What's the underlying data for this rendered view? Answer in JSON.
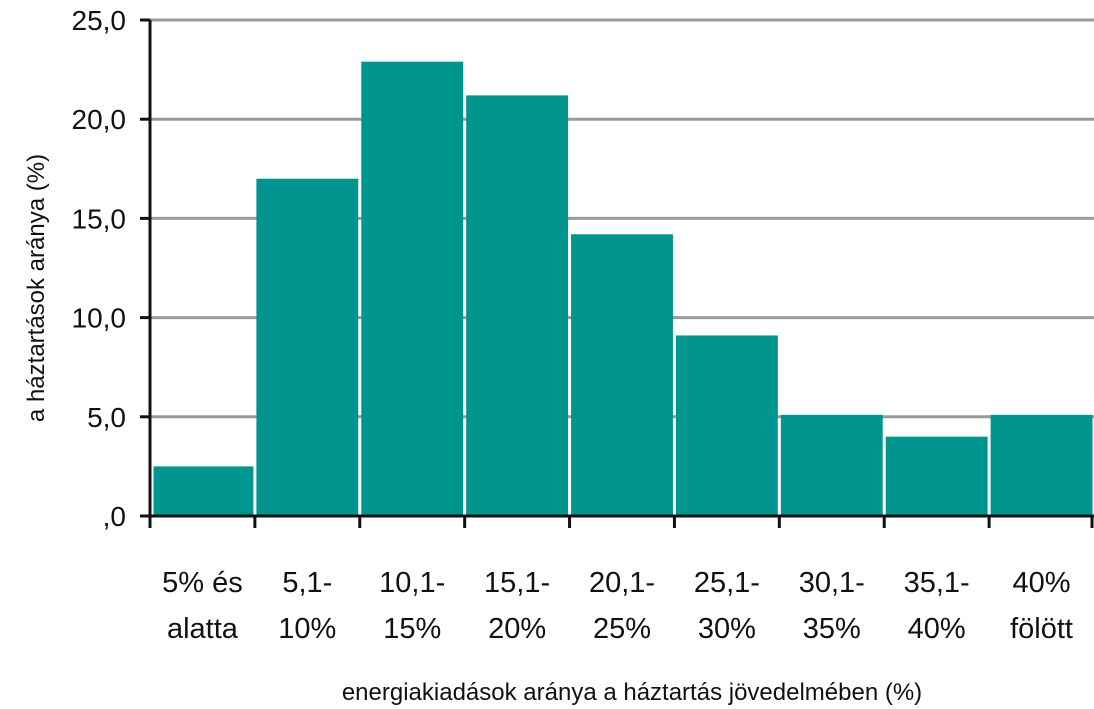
{
  "chart_data": {
    "type": "bar",
    "title": "",
    "xlabel": "energiakiadások aránya a háztartás jövedelmében (%)",
    "ylabel": "a háztartások aránya (%)",
    "ylim": [
      0,
      25
    ],
    "yticks": [
      0,
      5,
      10,
      15,
      20,
      25
    ],
    "ytick_labels": [
      ",0",
      "5,0",
      "10,0",
      "15,0",
      "20,0",
      "25,0"
    ],
    "categories": [
      [
        "5% és",
        "alatta"
      ],
      [
        "5,1-",
        "10%"
      ],
      [
        "10,1-",
        "15%"
      ],
      [
        "15,1-",
        "20%"
      ],
      [
        "20,1-",
        "25%"
      ],
      [
        "25,1-",
        "30%"
      ],
      [
        "30,1-",
        "35%"
      ],
      [
        "35,1-",
        "40%"
      ],
      [
        "40%",
        "fölött"
      ]
    ],
    "values": [
      2.5,
      17.0,
      22.9,
      21.2,
      14.2,
      9.1,
      5.1,
      4.0,
      5.1
    ],
    "bar_color": "#00968f",
    "grid": true
  }
}
